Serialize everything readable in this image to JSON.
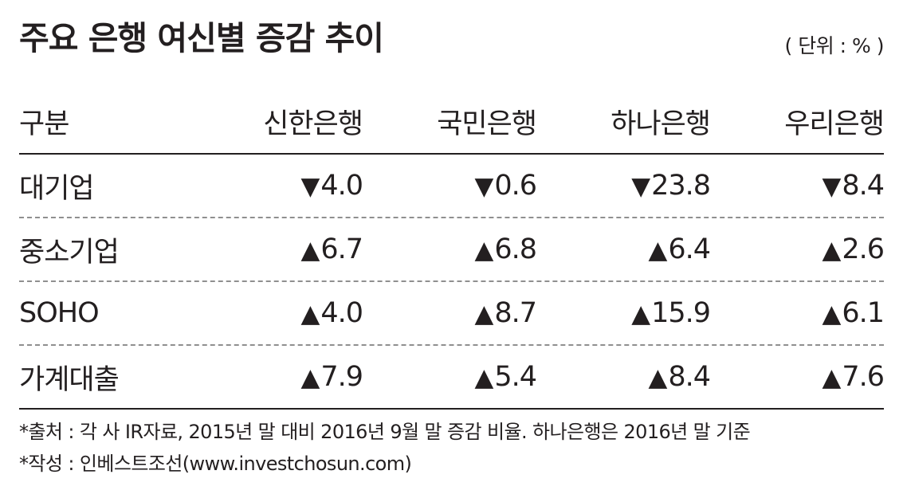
{
  "title": "주요 은행 여신별 증감 추이",
  "unit": "( 단위 : % )",
  "table": {
    "headers": [
      "구분",
      "신한은행",
      "국민은행",
      "하나은행",
      "우리은행"
    ],
    "rows": [
      {
        "label": "대기업",
        "values": [
          {
            "arrow": "▼",
            "value": "4.0"
          },
          {
            "arrow": "▼",
            "value": "0.6"
          },
          {
            "arrow": "▼",
            "value": "23.8"
          },
          {
            "arrow": "▼",
            "value": "8.4"
          }
        ]
      },
      {
        "label": "중소기업",
        "values": [
          {
            "arrow": "▲",
            "value": "6.7"
          },
          {
            "arrow": "▲",
            "value": "6.8"
          },
          {
            "arrow": "▲",
            "value": "6.4"
          },
          {
            "arrow": "▲",
            "value": "2.6"
          }
        ]
      },
      {
        "label": "SOHO",
        "values": [
          {
            "arrow": "▲",
            "value": "4.0"
          },
          {
            "arrow": "▲",
            "value": "8.7"
          },
          {
            "arrow": "▲",
            "value": "15.9"
          },
          {
            "arrow": "▲",
            "value": "6.1"
          }
        ]
      },
      {
        "label": "가계대출",
        "values": [
          {
            "arrow": "▲",
            "value": "7.9"
          },
          {
            "arrow": "▲",
            "value": "5.4"
          },
          {
            "arrow": "▲",
            "value": "8.4"
          },
          {
            "arrow": "▲",
            "value": "7.6"
          }
        ]
      }
    ]
  },
  "notes": {
    "source": "*출처 : 각 사 IR자료, 2015년 말 대비 2016년 9월 말 증감 비율. 하나은행은 2016년 말 기준",
    "author": "*작성 : 인베스트조선(www.investchosun.com)"
  }
}
